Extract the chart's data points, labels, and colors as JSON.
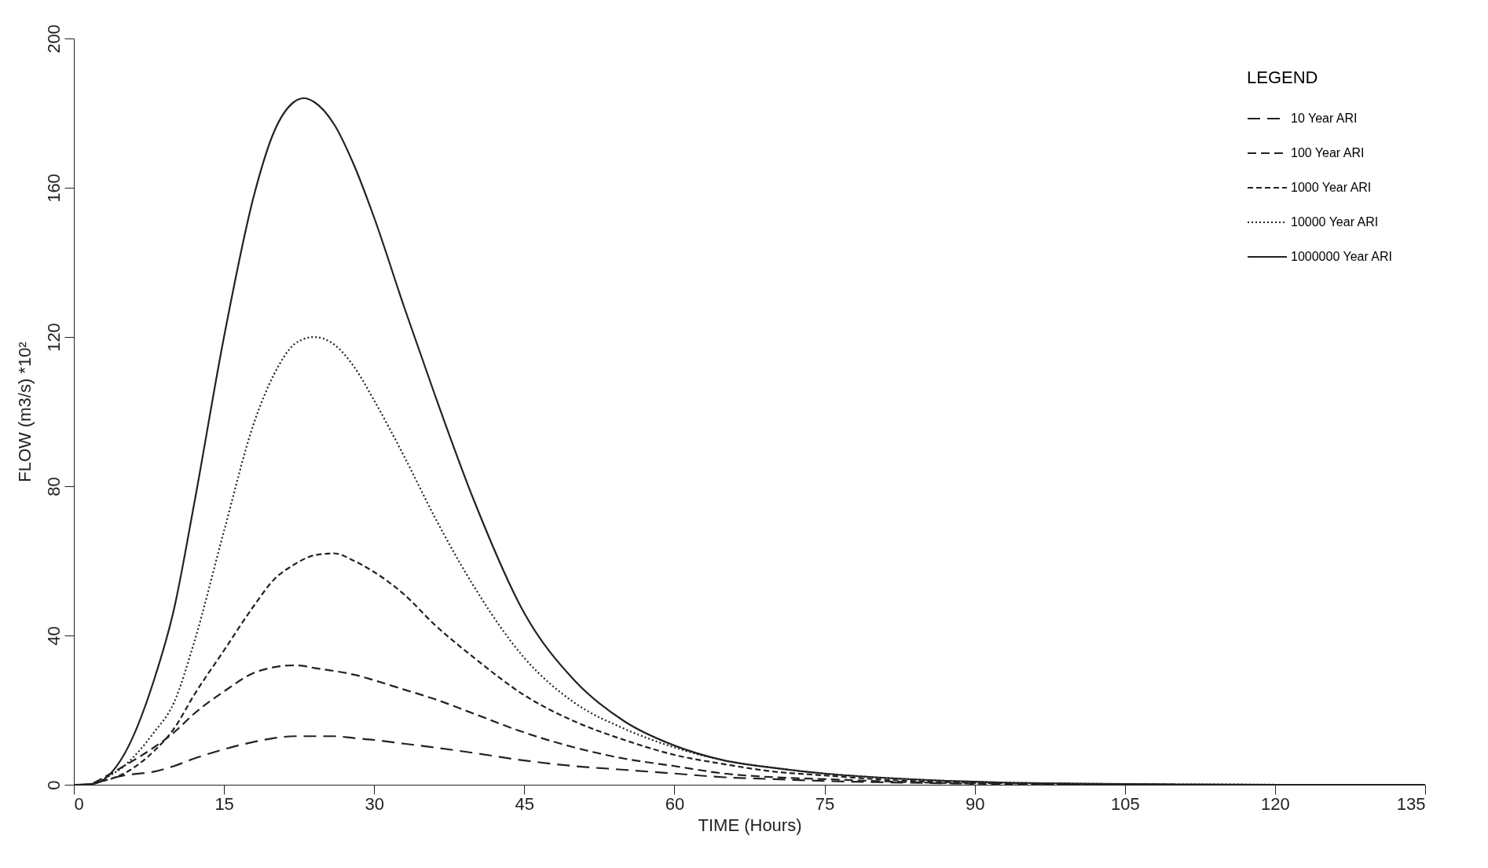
{
  "chart_data": {
    "type": "line",
    "xlabel": "TIME  (Hours)",
    "ylabel": "FLOW  (m3/s)   *10²",
    "legend_title": "LEGEND",
    "legend": "top right",
    "grid": false,
    "marker": "none",
    "x": [
      0,
      2,
      5,
      8,
      10,
      12,
      15,
      18,
      20,
      22,
      23,
      24,
      26,
      28,
      30,
      33,
      36,
      40,
      45,
      50,
      55,
      60,
      65,
      70,
      75,
      80,
      90,
      100,
      110,
      120,
      135
    ],
    "xlim": [
      0,
      135
    ],
    "xticks": [
      0,
      15,
      30,
      45,
      60,
      75,
      90,
      105,
      120,
      135
    ],
    "ylim": [
      0,
      200
    ],
    "yticks": [
      0,
      40,
      80,
      120,
      160,
      200
    ],
    "series": [
      {
        "name": "10 Year ARI",
        "color": "#222222",
        "line_style": "dashed",
        "values": [
          null,
          0.3,
          2.5,
          3.5,
          5,
          7,
          9.5,
          11.5,
          12.5,
          13,
          13,
          13,
          13,
          12.5,
          12,
          11,
          10,
          8.5,
          6.5,
          5,
          4,
          3,
          2,
          1.5,
          1,
          0.7,
          0.3,
          null,
          null,
          null,
          null
        ]
      },
      {
        "name": "100 Year ARI",
        "color": "#222222",
        "line_style": "dashed",
        "values": [
          null,
          0.5,
          5,
          10,
          14,
          19,
          25,
          30,
          31.5,
          32,
          31.8,
          31.3,
          30.5,
          29.5,
          28,
          25.5,
          23,
          19,
          14,
          10,
          7,
          5,
          3,
          2,
          1.5,
          1,
          0.3,
          0.1,
          null,
          null,
          null
        ]
      },
      {
        "name": "1000 Year ARI",
        "color": "#222222",
        "line_style": "dashed",
        "values": [
          null,
          0.5,
          3,
          9,
          15,
          24,
          36,
          48,
          55,
          59,
          60.5,
          61.5,
          62,
          60,
          57,
          51,
          43,
          34,
          24,
          17,
          12,
          8,
          5.5,
          3.5,
          2.5,
          1.5,
          0.5,
          0.2,
          0.1,
          null,
          null
        ]
      },
      {
        "name": "10000 Year ARI",
        "color": "#222222",
        "line_style": "dotted",
        "values": [
          null,
          0.5,
          5,
          14,
          22,
          38,
          68,
          97,
          110,
          118,
          119.5,
          120,
          118,
          112,
          103,
          88,
          72,
          53,
          34,
          22,
          15,
          10,
          6.5,
          4.5,
          3,
          2,
          0.8,
          0.3,
          0.1,
          0.05,
          null
        ]
      },
      {
        "name": "1000000 Year ARI",
        "color": "#222222",
        "line_style": "solid",
        "values": [
          0,
          0.3,
          8,
          28,
          47,
          75,
          120,
          158,
          175,
          183,
          184,
          183,
          177,
          166,
          152,
          128,
          105,
          76,
          46,
          28,
          17,
          10.5,
          6.5,
          4.5,
          3,
          2,
          0.8,
          0.3,
          0.1,
          0,
          0
        ]
      }
    ]
  }
}
